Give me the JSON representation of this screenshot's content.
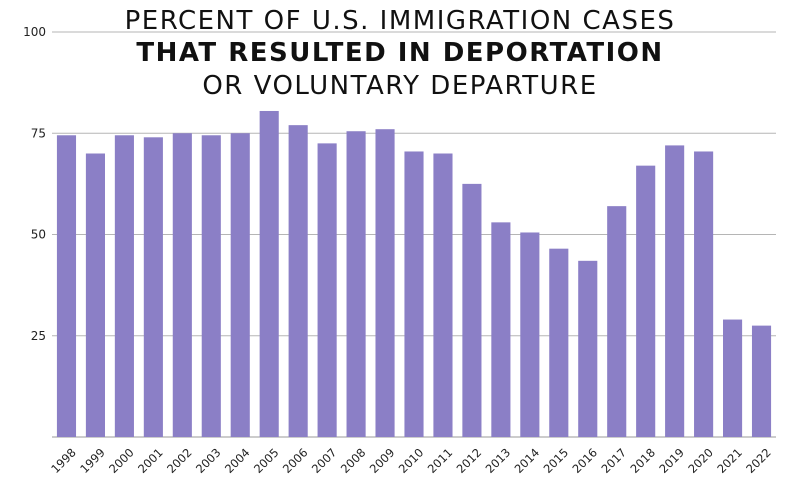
{
  "chart_data": {
    "type": "bar",
    "title_lines": [
      "PERCENT OF U.S. IMMIGRATION CASES",
      "THAT RESULTED IN DEPORTATION",
      "OR VOLUNTARY DEPARTURE"
    ],
    "xlabel": "",
    "ylabel": "",
    "ylim": [
      0,
      100
    ],
    "yticks": [
      "25",
      "50",
      "75",
      "100"
    ],
    "grid": true,
    "bar_color": "#8b7fc6",
    "gridline_color": "#b5b5b5",
    "categories": [
      "1998",
      "1999",
      "2000",
      "2001",
      "2002",
      "2003",
      "2004",
      "2005",
      "2006",
      "2007",
      "2008",
      "2009",
      "2010",
      "2011",
      "2012",
      "2013",
      "2014",
      "2015",
      "2016",
      "2017",
      "2018",
      "2019",
      "2020",
      "2021",
      "2022"
    ],
    "values": [
      74.5,
      70,
      74.5,
      74,
      75,
      74.5,
      75,
      80.5,
      77,
      72.5,
      75.5,
      76,
      70.5,
      70,
      62.5,
      53,
      50.5,
      46.5,
      43.5,
      57,
      67,
      72,
      70.5,
      29,
      27.5
    ]
  }
}
